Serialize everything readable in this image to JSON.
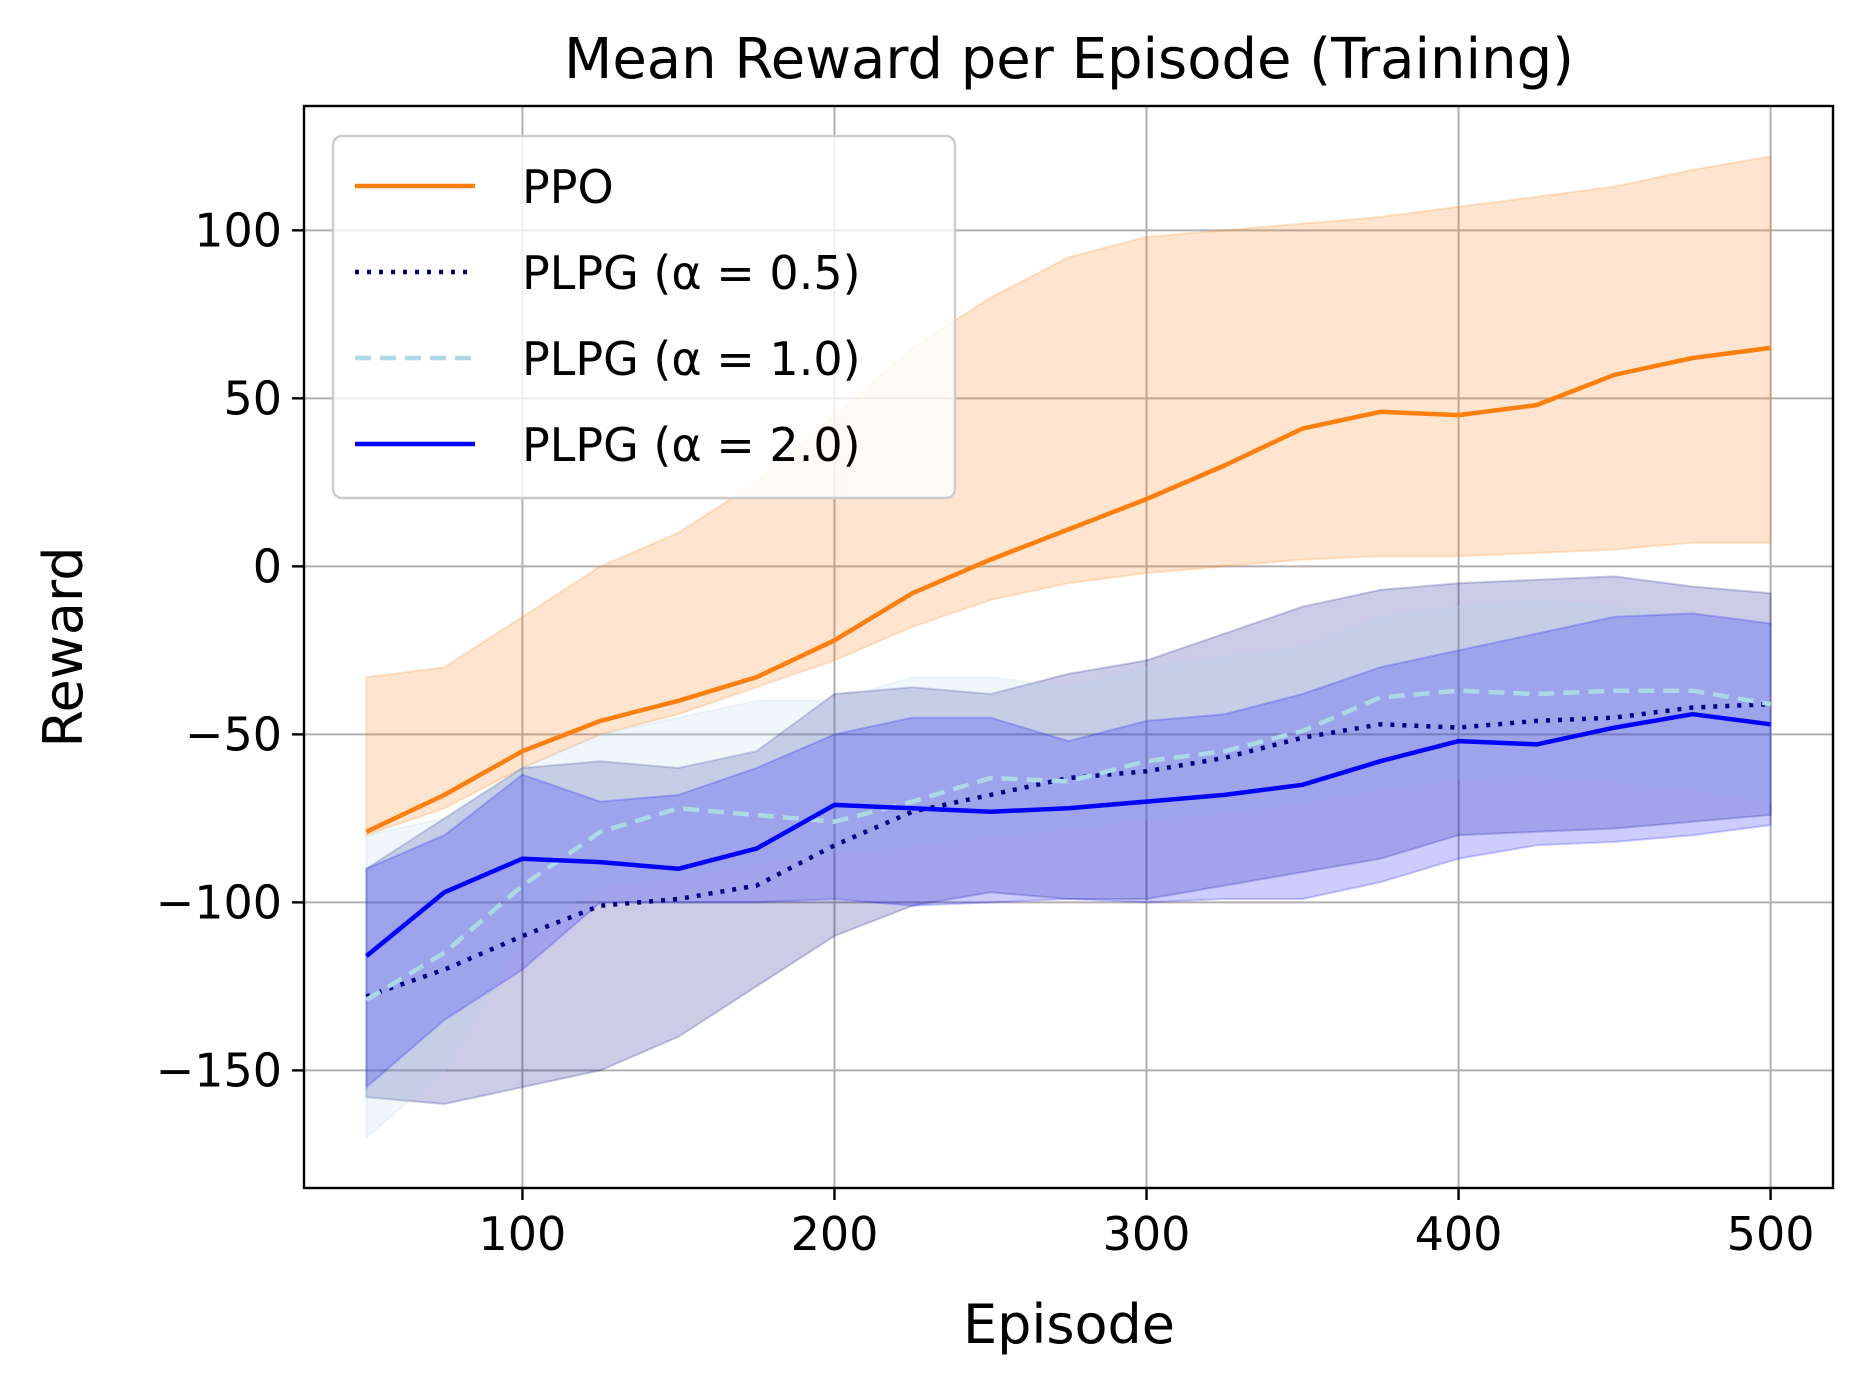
{
  "chart_data": {
    "type": "line",
    "title": "Mean Reward per Episode (Training)",
    "xlabel": "Episode",
    "ylabel": "Reward",
    "xlim": [
      30,
      520
    ],
    "ylim": [
      -185,
      137
    ],
    "xticks": [
      100,
      200,
      300,
      400,
      500
    ],
    "xtick_labels": [
      "100",
      "200",
      "300",
      "400",
      "500"
    ],
    "yticks": [
      100,
      50,
      0,
      -50,
      -100,
      -150
    ],
    "ytick_labels": [
      "100",
      "50",
      "0",
      "−50",
      "−100",
      "−150"
    ],
    "grid": true,
    "legend_position": "top-left",
    "legend": [
      "PPO",
      "PLPG (α = 0.5)",
      "PLPG (α = 1.0)",
      "PLPG (α = 2.0)"
    ],
    "series": [
      {
        "name": "PPO",
        "color": "#ff7f0e",
        "band_color": "#ff7f0e",
        "linestyle": "solid",
        "x": [
          50,
          75,
          100,
          125,
          150,
          175,
          200,
          225,
          250,
          275,
          300,
          325,
          350,
          375,
          400,
          425,
          450,
          475,
          500
        ],
        "mean": [
          -79,
          -68,
          -55,
          -46,
          -40,
          -33,
          -22,
          -8,
          2,
          11,
          20,
          30,
          41,
          46,
          45,
          48,
          57,
          62,
          65
        ],
        "lower": [
          -80,
          -72,
          -60,
          -50,
          -44,
          -36,
          -28,
          -18,
          -10,
          -5,
          -2,
          0,
          2,
          3,
          3,
          4,
          5,
          7,
          7
        ],
        "upper": [
          -33,
          -30,
          -15,
          0,
          10,
          25,
          45,
          65,
          80,
          92,
          98,
          100,
          102,
          104,
          107,
          110,
          113,
          118,
          122
        ]
      },
      {
        "name": "PLPG (α = 0.5)",
        "color": "#000080",
        "band_color": "#000080",
        "linestyle": "dotted",
        "x": [
          50,
          75,
          100,
          125,
          150,
          175,
          200,
          225,
          250,
          275,
          300,
          325,
          350,
          375,
          400,
          425,
          450,
          475,
          500
        ],
        "mean": [
          -128,
          -120,
          -110,
          -101,
          -99,
          -95,
          -83,
          -73,
          -68,
          -63,
          -61,
          -57,
          -51,
          -47,
          -48,
          -46,
          -45,
          -42,
          -41
        ],
        "lower": [
          -158,
          -160,
          -155,
          -150,
          -140,
          -125,
          -110,
          -101,
          -97,
          -99,
          -99,
          -95,
          -91,
          -87,
          -80,
          -79,
          -78,
          -76,
          -74
        ],
        "upper": [
          -90,
          -75,
          -60,
          -58,
          -60,
          -55,
          -38,
          -36,
          -38,
          -32,
          -28,
          -20,
          -12,
          -7,
          -5,
          -4,
          -3,
          -6,
          -8
        ]
      },
      {
        "name": "PLPG (α = 1.0)",
        "color": "#add8e6",
        "band_color": "#add8e6",
        "linestyle": "dashed",
        "x": [
          50,
          75,
          100,
          125,
          150,
          175,
          200,
          225,
          250,
          275,
          300,
          325,
          350,
          375,
          400,
          425,
          450,
          475,
          500
        ],
        "mean": [
          -129,
          -115,
          -95,
          -79,
          -72,
          -74,
          -76,
          -70,
          -63,
          -64,
          -58,
          -55,
          -49,
          -39,
          -37,
          -38,
          -37,
          -37,
          -41
        ],
        "lower": [
          -170,
          -150,
          -110,
          -95,
          -92,
          -88,
          -85,
          -83,
          -80,
          -78,
          -75,
          -73,
          -70,
          -66,
          -63,
          -62,
          -64,
          -66,
          -70
        ],
        "upper": [
          -80,
          -75,
          -60,
          -50,
          -45,
          -40,
          -40,
          -33,
          -33,
          -36,
          -30,
          -27,
          -24,
          -15,
          -12,
          -10,
          -12,
          -15,
          -18
        ]
      },
      {
        "name": "PLPG (α = 2.0)",
        "color": "#0000ff",
        "band_color": "#0000ff",
        "linestyle": "solid",
        "x": [
          50,
          75,
          100,
          125,
          150,
          175,
          200,
          225,
          250,
          275,
          300,
          325,
          350,
          375,
          400,
          425,
          450,
          475,
          500
        ],
        "mean": [
          -116,
          -97,
          -87,
          -88,
          -90,
          -84,
          -71,
          -72,
          -73,
          -72,
          -70,
          -68,
          -65,
          -58,
          -52,
          -53,
          -48,
          -44,
          -47
        ],
        "lower": [
          -155,
          -135,
          -120,
          -100,
          -100,
          -100,
          -99,
          -101,
          -100,
          -99,
          -100,
          -99,
          -99,
          -94,
          -87,
          -83,
          -82,
          -80,
          -77
        ],
        "upper": [
          -90,
          -80,
          -62,
          -70,
          -68,
          -60,
          -50,
          -45,
          -45,
          -52,
          -46,
          -44,
          -38,
          -30,
          -25,
          -20,
          -15,
          -14,
          -17
        ]
      }
    ]
  }
}
